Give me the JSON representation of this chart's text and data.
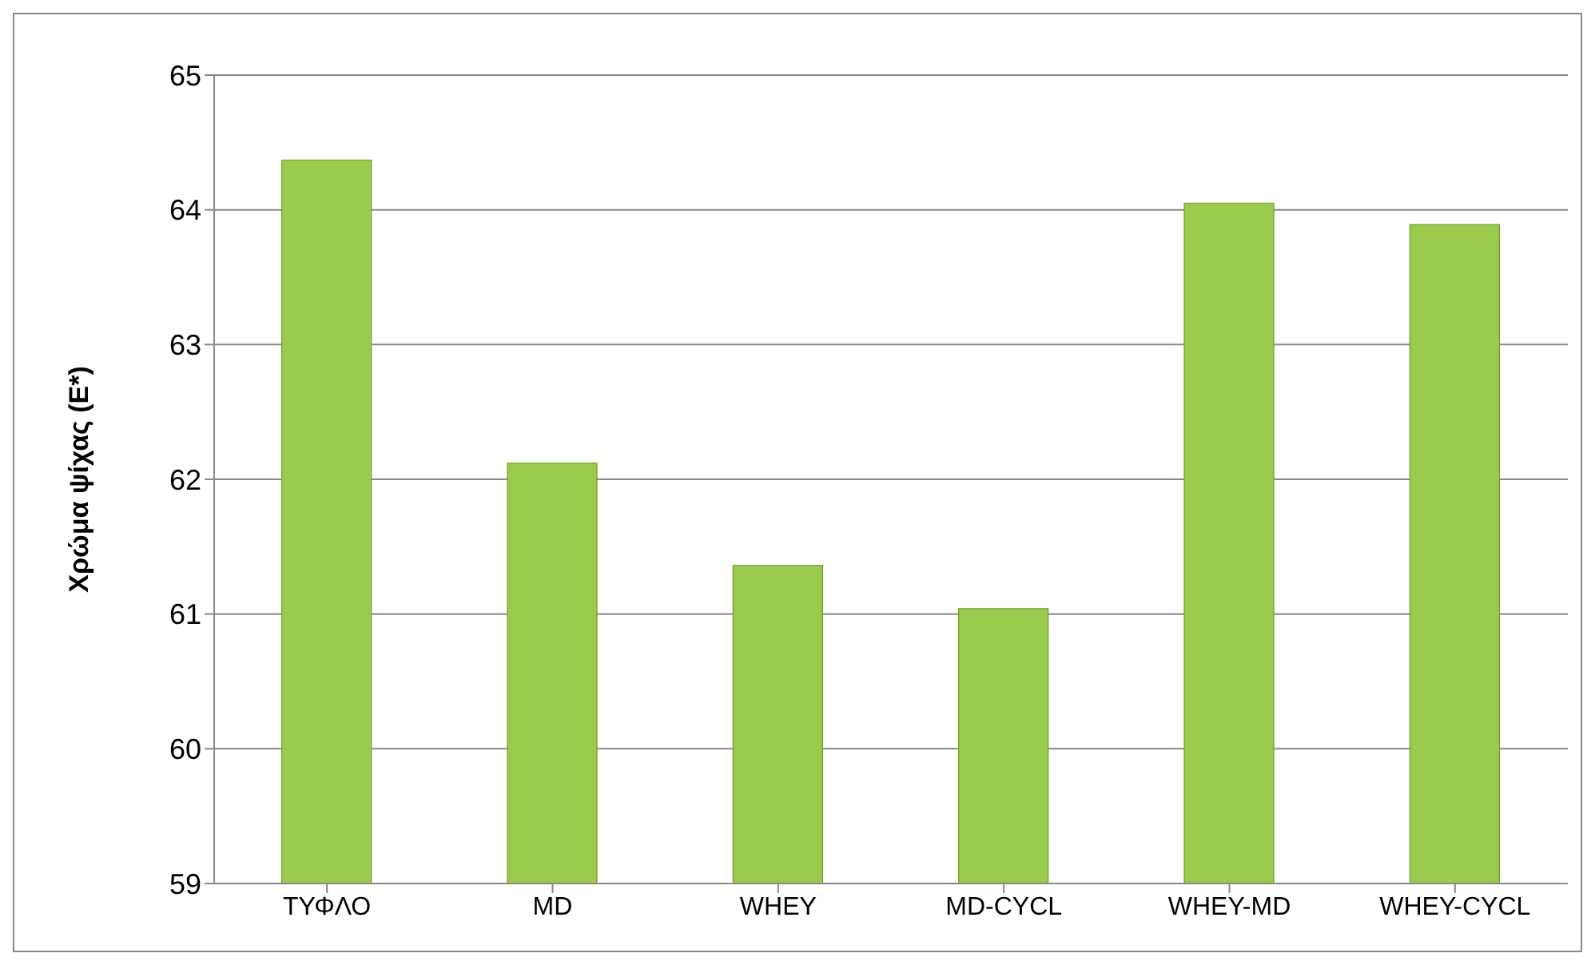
{
  "chart_data": {
    "type": "bar",
    "ylabel": "Χρώμα ψίχας (E*)",
    "categories": [
      "ΤΥΦΛΟ",
      "MD",
      "WHEY",
      "MD-CYCL",
      "WHEY-MD",
      "WHEY-CYCL"
    ],
    "values": [
      64.37,
      62.12,
      61.36,
      61.04,
      64.05,
      63.89
    ],
    "color": "#9acb4c",
    "ylim": [
      59,
      65
    ],
    "yticks": [
      59,
      60,
      61,
      62,
      63,
      64,
      65
    ],
    "grid": "y",
    "legend": false
  }
}
